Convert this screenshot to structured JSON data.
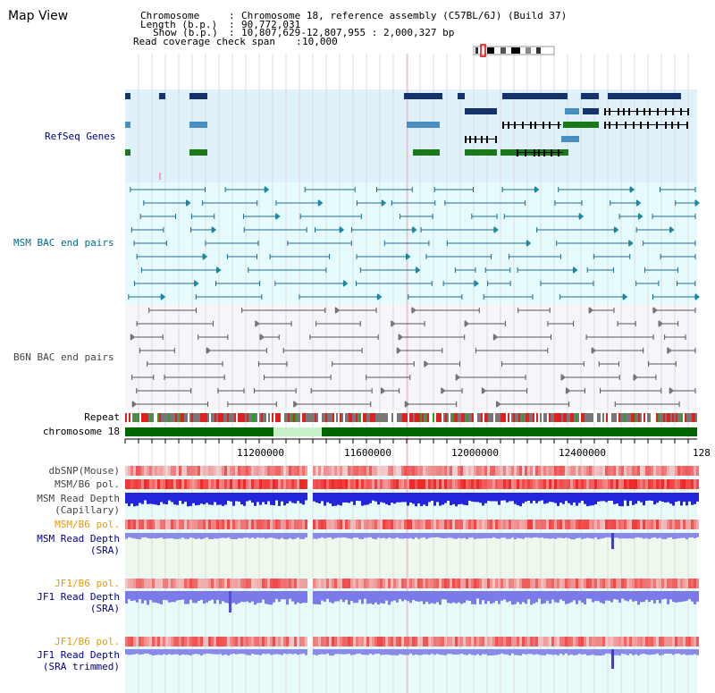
{
  "page": {
    "title": "Map View"
  },
  "header": {
    "chromosome_label": "Chromosome",
    "chromosome_value": "Chromosome 18, reference assembly (C57BL/6J) (Build 37)",
    "length_label": "Length (b.p.)",
    "length_value": "90,772,031",
    "show_label": "Show (b.p.)",
    "show_value": "10,807,629-12,807,955 : 2,000,327 bp",
    "span_label": "Read coverage check span",
    "span_value": "10,000"
  },
  "tracks": {
    "refseq": "RefSeq Genes",
    "msm_bac": "MSM BAC end pairs",
    "b6n_bac": "B6N BAC end pairs",
    "repeat": "Repeat",
    "chromosome": "chromosome 18",
    "dbsnp": "dbSNP(Mouse)",
    "msm_b6_pol_1": "MSM/B6 pol.",
    "msm_depth_cap_1": "MSM Read Depth",
    "msm_depth_cap_2": "(Capillary)",
    "msm_b6_pol_2": "MSM/B6 pol.",
    "msm_depth_sra_1": "MSM Read Depth",
    "msm_depth_sra_2": "(SRA)",
    "jf1_b6_pol_1": "JF1/B6 pol.",
    "jf1_depth_sra_1": "JF1 Read Depth",
    "jf1_depth_sra_2": "(SRA)",
    "jf1_b6_pol_2": "JF1/B6 pol.",
    "jf1_depth_trim_1": "JF1 Read Depth",
    "jf1_depth_trim_2": "(SRA trimmed)"
  },
  "axis": {
    "ticks": [
      "11200000",
      "11600000",
      "12000000",
      "12400000",
      "128"
    ]
  },
  "colors": {
    "navy": "#00008b",
    "teal": "#006b8a",
    "gray": "#444444",
    "orange": "#e69a00",
    "refseq_bg": "#dff1fb",
    "bac_bg": "#e6fbfd",
    "pol_red": "#ef3535",
    "depth_blue": "#2222dd"
  }
}
